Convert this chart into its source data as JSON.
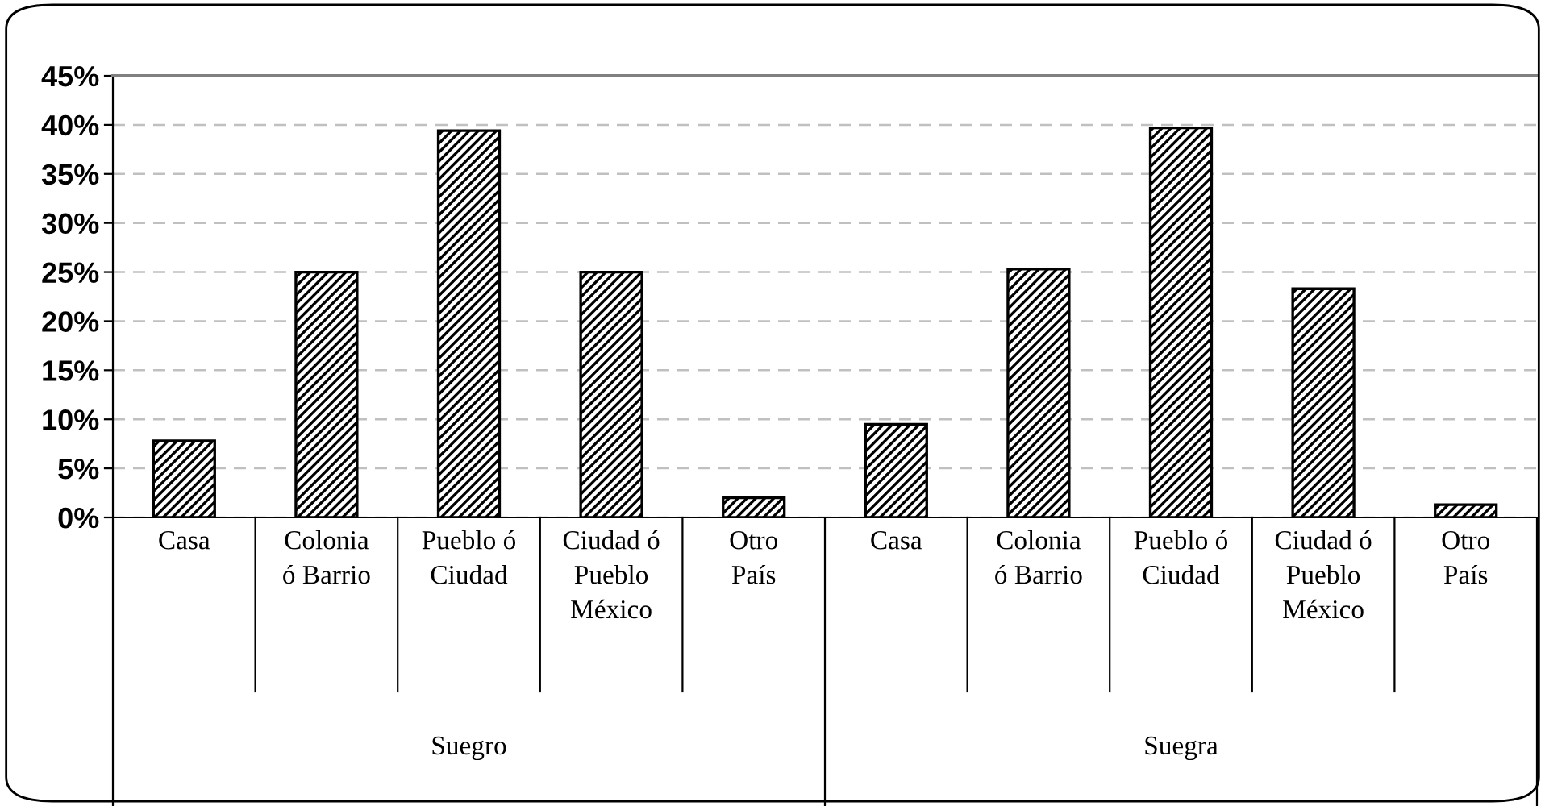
{
  "chart_data": {
    "type": "bar",
    "categories": [
      "Casa",
      "Colonia\nó Barrio",
      "Pueblo ó\nCiudad",
      "Ciudad ó\nPueblo\nMéxico",
      "Otro\nPaís",
      "Casa",
      "Colonia\nó Barrio",
      "Pueblo ó\nCiudad",
      "Ciudad ó\nPueblo\nMéxico",
      "Otro\nPaís"
    ],
    "values": [
      7.8,
      25,
      39.4,
      25,
      2.0,
      9.5,
      25.3,
      39.7,
      23.3,
      1.3
    ],
    "color": "#000000",
    "ylim": [
      0,
      45
    ],
    "yticks": [
      {
        "value": 0,
        "label": "0%"
      },
      {
        "value": 5,
        "label": "5%"
      },
      {
        "value": 10,
        "label": "10%"
      },
      {
        "value": 15,
        "label": "15%"
      },
      {
        "value": 20,
        "label": "20%"
      },
      {
        "value": 25,
        "label": "25%"
      },
      {
        "value": 30,
        "label": "30%"
      },
      {
        "value": 35,
        "label": "35%"
      },
      {
        "value": 40,
        "label": "40%"
      },
      {
        "value": 45,
        "label": "45%"
      }
    ],
    "grid": "y",
    "legend": false,
    "annotations": [
      "Suegro",
      "Suegra"
    ]
  }
}
